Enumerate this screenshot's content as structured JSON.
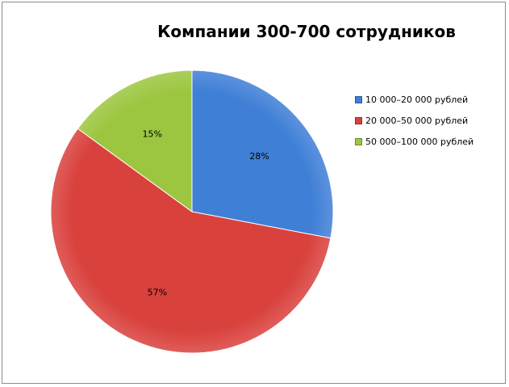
{
  "chart_data": {
    "type": "pie",
    "title": "Компании 300-700 сотрудников",
    "categories": [
      "10 000–20 000 рублей",
      "20 000–50 000 рублей",
      "50 000–100 000 рублей"
    ],
    "values": [
      28,
      57,
      15
    ],
    "data_labels": [
      "28%",
      "57%",
      "15%"
    ],
    "colors": [
      "#3f7fd6",
      "#d9413d",
      "#9cc640"
    ],
    "start_angle": "top, clockwise",
    "legend_placement": "right"
  }
}
